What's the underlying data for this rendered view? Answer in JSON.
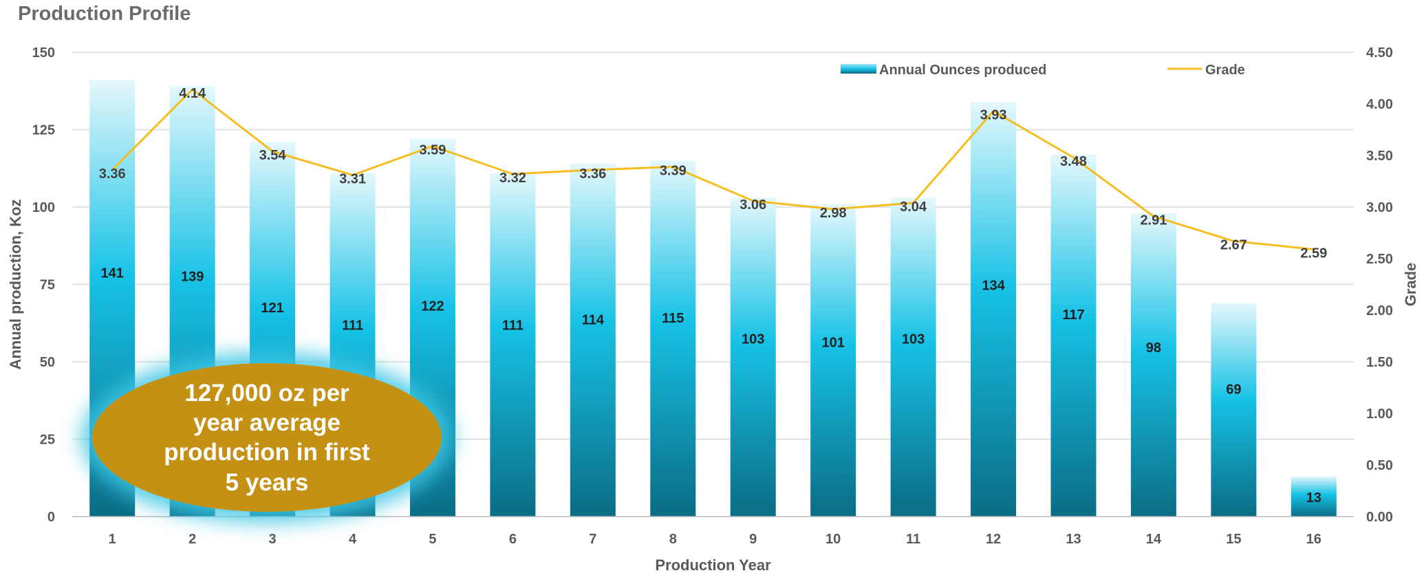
{
  "chart_data": {
    "type": "bar",
    "title": "Production Profile",
    "xlabel": "Production Year",
    "ylabel": "Annual production, Koz",
    "y2label": "Grade",
    "categories": [
      "1",
      "2",
      "3",
      "4",
      "5",
      "6",
      "7",
      "8",
      "9",
      "10",
      "11",
      "12",
      "13",
      "14",
      "15",
      "16"
    ],
    "ylim": [
      0,
      150
    ],
    "yticks": [
      "0",
      "25",
      "50",
      "75",
      "100",
      "125",
      "150"
    ],
    "y2lim": [
      0,
      4.5
    ],
    "y2ticks": [
      "0.00",
      "0.50",
      "1.00",
      "1.50",
      "2.00",
      "2.50",
      "3.00",
      "3.50",
      "4.00",
      "4.50"
    ],
    "grid": true,
    "legend_position": "top-right",
    "series": [
      {
        "name": "Annual Ounces produced",
        "type": "bar",
        "axis": "left",
        "color": "#17c2e6",
        "values": [
          141,
          139,
          121,
          111,
          122,
          111,
          114,
          115,
          103,
          101,
          103,
          134,
          117,
          98,
          69,
          13
        ]
      },
      {
        "name": "Grade",
        "type": "line",
        "axis": "right",
        "color": "#f5bd1f",
        "values": [
          3.36,
          4.14,
          3.54,
          3.31,
          3.59,
          3.32,
          3.36,
          3.39,
          3.06,
          2.98,
          3.04,
          3.93,
          3.48,
          2.91,
          2.67,
          2.59
        ],
        "labels": [
          "3.36",
          "4.14",
          "3.54",
          "3.31",
          "3.59",
          "3.32",
          "3.36",
          "3.39",
          "3.06",
          "2.98",
          "3.04",
          "3.93",
          "3.48",
          "2.91",
          "2.67",
          "2.59"
        ]
      }
    ],
    "annotation": {
      "lines": [
        "127,000 oz per",
        "year average",
        "production in first",
        "5 years"
      ],
      "fill_color": "#c59114",
      "glow_color": "#3cc6e4"
    }
  }
}
